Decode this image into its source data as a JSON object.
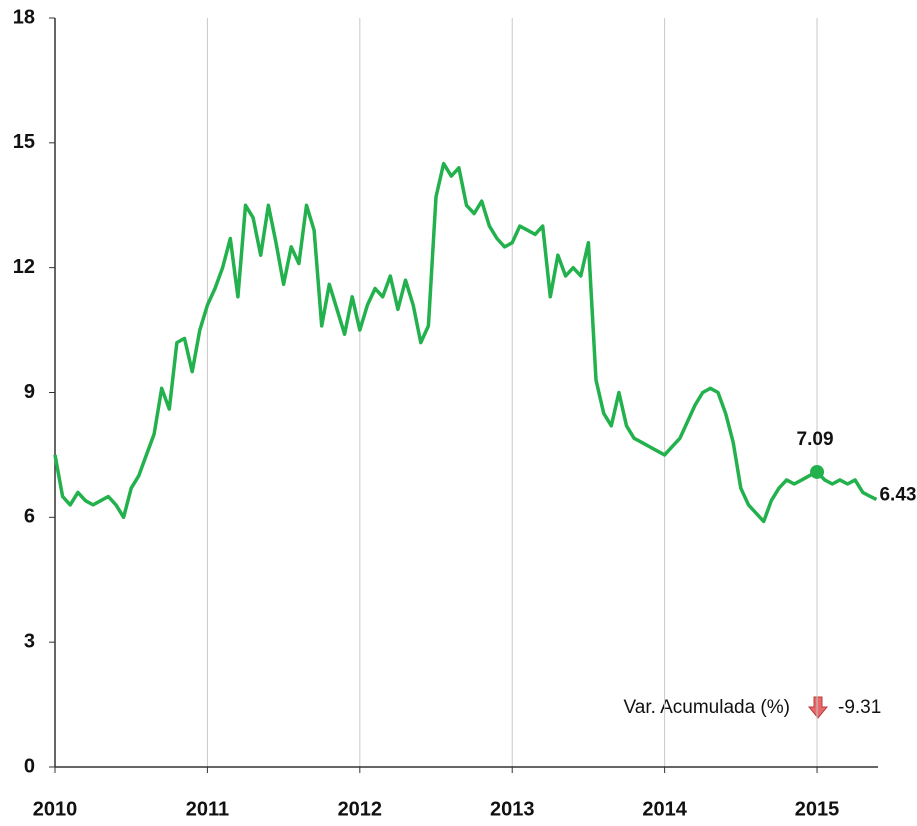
{
  "chart_data": {
    "type": "line",
    "x": [
      2010.0,
      2010.05,
      2010.1,
      2010.15,
      2010.2,
      2010.25,
      2010.3,
      2010.35,
      2010.4,
      2010.45,
      2010.5,
      2010.55,
      2010.6,
      2010.65,
      2010.7,
      2010.75,
      2010.8,
      2010.85,
      2010.9,
      2010.95,
      2011.0,
      2011.05,
      2011.1,
      2011.15,
      2011.2,
      2011.25,
      2011.3,
      2011.35,
      2011.4,
      2011.45,
      2011.5,
      2011.55,
      2011.6,
      2011.65,
      2011.7,
      2011.75,
      2011.8,
      2011.85,
      2011.9,
      2011.95,
      2012.0,
      2012.05,
      2012.1,
      2012.15,
      2012.2,
      2012.25,
      2012.3,
      2012.35,
      2012.4,
      2012.45,
      2012.5,
      2012.55,
      2012.6,
      2012.65,
      2012.7,
      2012.75,
      2012.8,
      2012.85,
      2012.9,
      2012.95,
      2013.0,
      2013.05,
      2013.1,
      2013.15,
      2013.2,
      2013.25,
      2013.3,
      2013.35,
      2013.4,
      2013.45,
      2013.5,
      2013.55,
      2013.6,
      2013.65,
      2013.7,
      2013.75,
      2013.8,
      2013.85,
      2013.9,
      2013.95,
      2014.0,
      2014.05,
      2014.1,
      2014.15,
      2014.2,
      2014.25,
      2014.3,
      2014.35,
      2014.4,
      2014.45,
      2014.5,
      2014.55,
      2014.6,
      2014.65,
      2014.7,
      2014.75,
      2014.8,
      2014.85,
      2014.9,
      2014.95,
      2015.0,
      2015.05,
      2015.1,
      2015.15,
      2015.2,
      2015.25,
      2015.3,
      2015.35,
      2015.39
    ],
    "series": [
      {
        "color": "#22b14c",
        "values": [
          7.5,
          6.5,
          6.3,
          6.6,
          6.4,
          6.3,
          6.4,
          6.5,
          6.3,
          6.0,
          6.7,
          7.0,
          7.5,
          8.0,
          9.1,
          8.6,
          10.2,
          10.3,
          9.5,
          10.5,
          11.1,
          11.5,
          12.0,
          12.7,
          11.3,
          13.5,
          13.2,
          12.3,
          13.5,
          12.6,
          11.6,
          12.5,
          12.1,
          13.5,
          12.9,
          10.6,
          11.6,
          11.0,
          10.4,
          11.3,
          10.5,
          11.1,
          11.5,
          11.3,
          11.8,
          11.0,
          11.7,
          11.1,
          10.2,
          10.6,
          13.7,
          14.5,
          14.2,
          14.4,
          13.5,
          13.3,
          13.6,
          13.0,
          12.7,
          12.5,
          12.6,
          13.0,
          12.9,
          12.8,
          13.0,
          11.3,
          12.3,
          11.8,
          12.0,
          11.8,
          12.6,
          9.3,
          8.5,
          8.2,
          9.0,
          8.2,
          7.9,
          7.8,
          7.7,
          7.6,
          7.5,
          7.7,
          7.9,
          8.3,
          8.7,
          9.0,
          9.1,
          9.0,
          8.5,
          7.8,
          6.7,
          6.3,
          6.1,
          5.9,
          6.4,
          6.7,
          6.9,
          6.8,
          6.9,
          7.0,
          7.09,
          6.9,
          6.8,
          6.9,
          6.8,
          6.9,
          6.6,
          6.5,
          6.43
        ]
      }
    ],
    "xlim": [
      2010,
      2015.4
    ],
    "xticks": [
      2010,
      2011,
      2012,
      2013,
      2014,
      2015
    ],
    "ylim": [
      0,
      18
    ],
    "yticks": [
      0,
      3,
      6,
      9,
      12,
      15,
      18
    ],
    "grid": true,
    "annotations": [
      {
        "x": 2015.0,
        "value": 7.09
      },
      {
        "x": 2015.39,
        "value": 6.43
      }
    ],
    "summary": {
      "label": "Var. Acumulada (%)",
      "value": -9.31
    }
  }
}
